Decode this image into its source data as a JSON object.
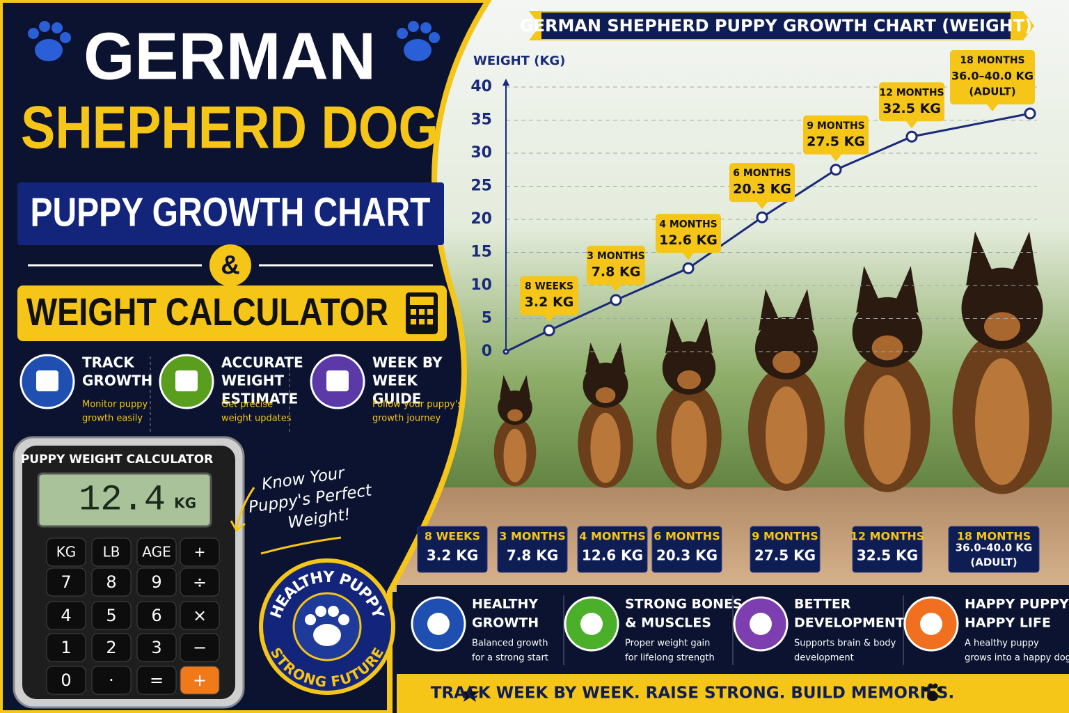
{
  "header": {
    "line1": "GERMAN",
    "line2": "SHEPHERD DOG",
    "line3": "PUPPY GROWTH CHART",
    "ampersand": "&",
    "line4": "WEIGHT CALCULATOR"
  },
  "features": [
    {
      "title": [
        "TRACK",
        "GROWTH"
      ],
      "description": [
        "Monitor puppy",
        "growth easily"
      ]
    },
    {
      "title": [
        "ACCURATE",
        "WEIGHT",
        "ESTIMATE"
      ],
      "description": [
        "Get precise",
        "weight updates"
      ]
    },
    {
      "title": [
        "WEEK BY",
        "WEEK",
        "GUIDE"
      ],
      "description": [
        "Follow your puppy's",
        "growth journey"
      ]
    }
  ],
  "calculator": {
    "title": "PUPPY WEIGHT CALCULATOR",
    "display": "12.4",
    "unit": "KG",
    "keys": [
      "KG",
      "LB",
      "AGE",
      "+",
      "7",
      "8",
      "9",
      "÷",
      "4",
      "5",
      "6",
      "×",
      "1",
      "2",
      "3",
      "−",
      "0",
      "·",
      "=",
      "+"
    ]
  },
  "tagline": [
    "Know Your",
    "Puppy's Perfect",
    "Weight!"
  ],
  "badge": {
    "top": "HEALTHY PUPPY",
    "bottom": "STRONG FUTURE"
  },
  "chart_data": {
    "type": "line",
    "title": "GERMAN SHEPHERD PUPPY GROWTH CHART (WEIGHT)",
    "y_label": "WEIGHT (KG)",
    "categories": [
      null,
      "8 WEEKS",
      "3 MONTHS",
      "4 MONTHS",
      "6 MONTHS",
      "9 MONTHS",
      "12 MONTHS",
      "18 MONTHS"
    ],
    "values": [
      0,
      3.2,
      7.8,
      12.6,
      20.3,
      27.5,
      32.5,
      36.0
    ],
    "value_labels": [
      null,
      "3.2 KG",
      "7.8 KG",
      "12.6 KG",
      "20.3 KG",
      "27.5 KG",
      "32.5 KG",
      "36.0–40.0 KG"
    ],
    "annotations": [
      "(ADULT)"
    ],
    "color": "#1a2a7a",
    "ylim": [
      0,
      40
    ],
    "yticks": [
      0,
      5,
      10,
      15,
      20,
      25,
      30,
      35,
      40
    ],
    "grid": true
  },
  "benefits": [
    {
      "title": [
        "HEALTHY",
        "GROWTH"
      ],
      "description": [
        "Balanced growth",
        "for a strong start"
      ]
    },
    {
      "title": [
        "STRONG BONES",
        "& MUSCLES"
      ],
      "description": [
        "Proper weight gain",
        "for lifelong strength"
      ]
    },
    {
      "title": [
        "BETTER",
        "DEVELOPMENT"
      ],
      "description": [
        "Supports brain & body",
        "development"
      ]
    },
    {
      "title": [
        "HAPPY PUPPY",
        "HAPPY LIFE"
      ],
      "description": [
        "A healthy puppy",
        "grows into a happy dog"
      ]
    }
  ],
  "footer": "TRACK WEEK BY WEEK. RAISE STRONG. BUILD MEMORIES."
}
